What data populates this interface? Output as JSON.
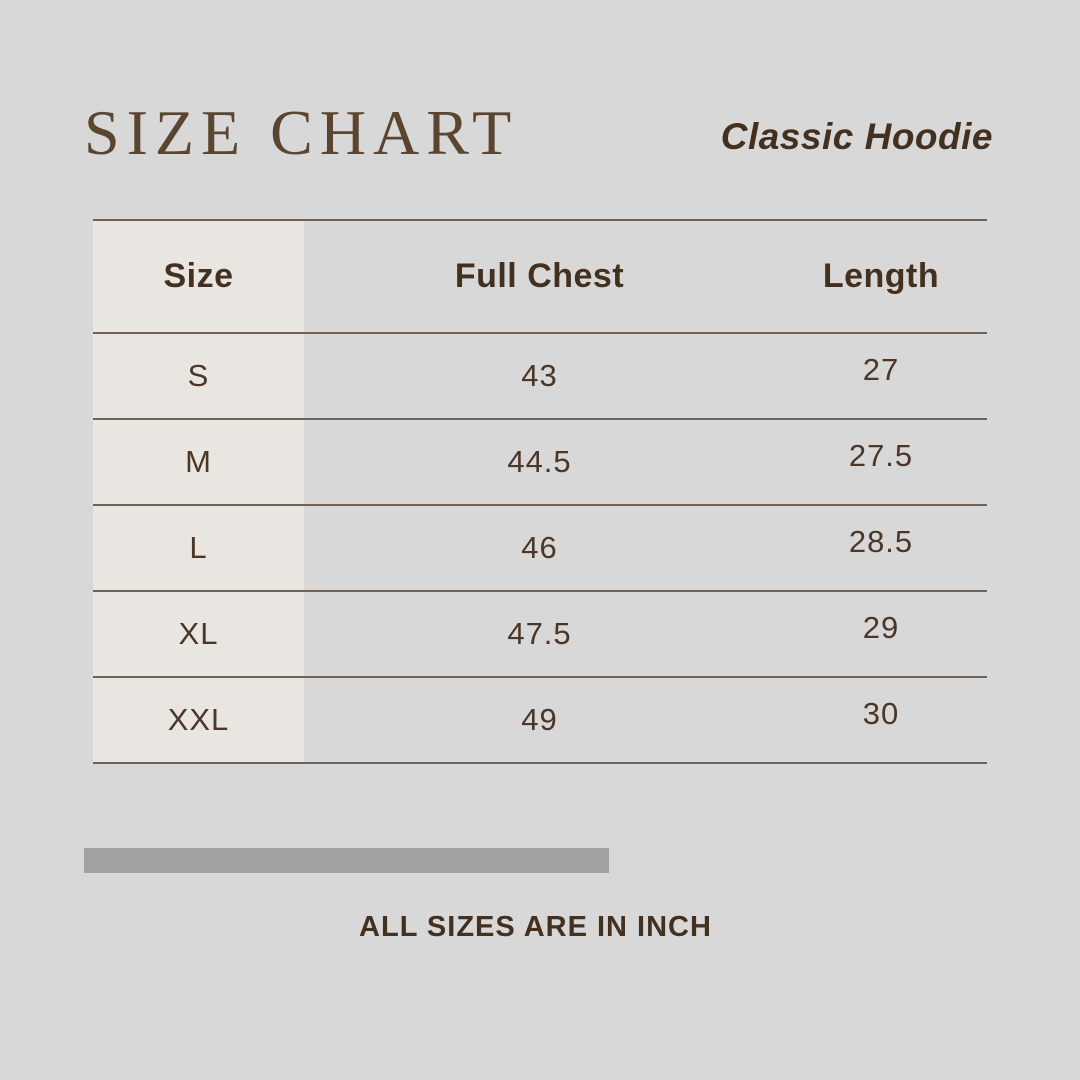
{
  "title": "SIZE CHART",
  "product": "Classic Hoodie",
  "table": {
    "headers": [
      "Size",
      "Full Chest",
      "Length"
    ],
    "rows": [
      {
        "size": "S",
        "full_chest": "43",
        "length": "27"
      },
      {
        "size": "M",
        "full_chest": "44.5",
        "length": "27.5"
      },
      {
        "size": "L",
        "full_chest": "46",
        "length": "28.5"
      },
      {
        "size": "XL",
        "full_chest": "47.5",
        "length": "29"
      },
      {
        "size": "XXL",
        "full_chest": "49",
        "length": "30"
      }
    ]
  },
  "note": "ALL SIZES ARE IN INCH",
  "colors": {
    "background": "#d8d8d8",
    "first_column_bg": "#e9e6e1",
    "line": "#6f6156",
    "text_brown": "#44301f",
    "title_brown": "#5a4531",
    "divider_bar": "#a2a2a2"
  }
}
